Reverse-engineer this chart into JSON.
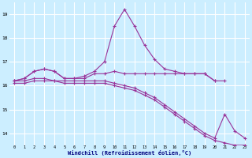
{
  "xlabel": "Windchill (Refroidissement éolien,°C)",
  "background_color": "#cceeff",
  "grid_color": "#ffffff",
  "line_color": "#993399",
  "xlim": [
    -0.5,
    23.5
  ],
  "ylim": [
    13.5,
    19.5
  ],
  "yticks": [
    14,
    15,
    16,
    17,
    18,
    19
  ],
  "xticks": [
    0,
    1,
    2,
    3,
    4,
    5,
    6,
    7,
    8,
    9,
    10,
    11,
    12,
    13,
    14,
    15,
    16,
    17,
    18,
    19,
    20,
    21,
    22,
    23
  ],
  "series": [
    {
      "x": [
        0,
        1,
        2,
        3,
        4,
        5,
        6,
        7,
        8,
        9,
        10,
        11,
        12,
        13,
        14,
        15,
        16,
        17,
        18,
        19,
        20,
        21
      ],
      "y": [
        16.2,
        16.3,
        16.6,
        16.7,
        16.6,
        16.3,
        16.3,
        16.3,
        16.5,
        16.5,
        16.6,
        16.5,
        16.5,
        16.5,
        16.5,
        16.5,
        16.5,
        16.5,
        16.5,
        16.5,
        16.2,
        16.2
      ]
    },
    {
      "x": [
        0,
        1,
        2,
        3,
        4,
        5,
        6,
        7,
        8,
        9,
        10,
        11,
        12,
        13,
        14,
        15,
        16,
        17,
        18,
        19,
        20
      ],
      "y": [
        16.2,
        16.3,
        16.6,
        16.7,
        16.6,
        16.3,
        16.3,
        16.4,
        16.6,
        17.0,
        18.5,
        19.2,
        18.5,
        17.7,
        17.1,
        16.7,
        16.6,
        16.5,
        16.5,
        16.5,
        16.2
      ]
    },
    {
      "x": [
        0,
        1,
        2,
        3,
        4,
        5,
        6,
        7,
        8,
        9,
        10,
        11,
        12,
        13,
        14,
        15,
        16,
        17,
        18,
        19,
        20,
        21,
        22,
        23
      ],
      "y": [
        16.2,
        16.2,
        16.3,
        16.3,
        16.2,
        16.2,
        16.2,
        16.2,
        16.2,
        16.2,
        16.1,
        16.0,
        15.9,
        15.7,
        15.5,
        15.2,
        14.9,
        14.6,
        14.3,
        14.0,
        13.8,
        14.8,
        14.1,
        13.8
      ]
    },
    {
      "x": [
        0,
        1,
        2,
        3,
        4,
        5,
        6,
        7,
        8,
        9,
        10,
        11,
        12,
        13,
        14,
        15,
        16,
        17,
        18,
        19,
        20,
        21,
        22,
        23
      ],
      "y": [
        16.1,
        16.1,
        16.2,
        16.2,
        16.2,
        16.1,
        16.1,
        16.1,
        16.1,
        16.1,
        16.0,
        15.9,
        15.8,
        15.6,
        15.4,
        15.1,
        14.8,
        14.5,
        14.2,
        13.9,
        13.7,
        13.6,
        13.5,
        13.5
      ]
    }
  ]
}
